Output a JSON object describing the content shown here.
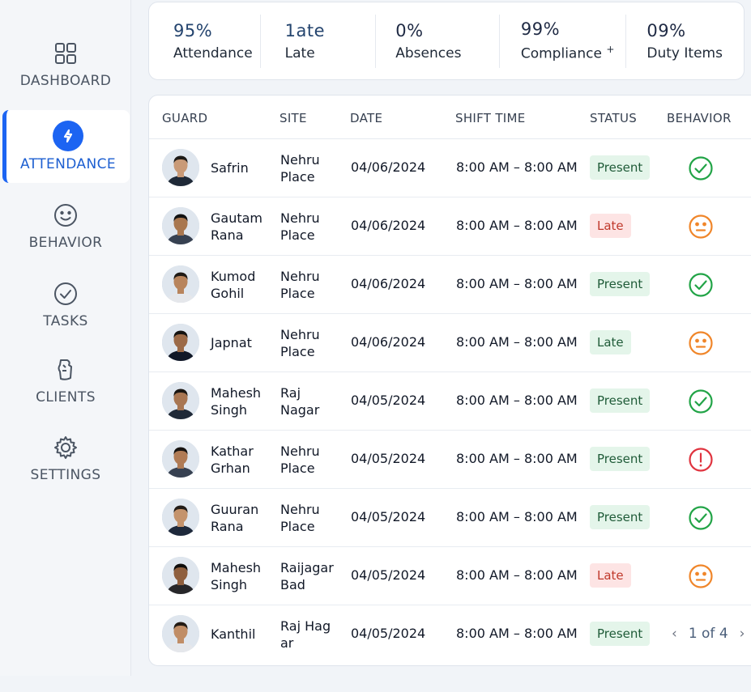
{
  "sidebar": {
    "items": [
      {
        "label": "DASHBOARD",
        "icon": "grid-icon"
      },
      {
        "label": "ATTENDANCE",
        "icon": "attendance-icon"
      },
      {
        "label": "BEHAVIOR",
        "icon": "smiley-icon"
      },
      {
        "label": "TASKS",
        "icon": "check-circle-icon"
      },
      {
        "label": "CLIENTS",
        "icon": "clients-icon"
      },
      {
        "label": "SETTINGS",
        "icon": "gear-icon"
      }
    ],
    "active": "ATTENDANCE"
  },
  "stats": [
    {
      "value": "95%",
      "label": "Attendance"
    },
    {
      "value": "1ate",
      "label": "Late"
    },
    {
      "value": "0%",
      "label": "Absences"
    },
    {
      "value": "99%",
      "label": "Compliance",
      "suffix": "+"
    },
    {
      "value": "09%",
      "label": "Duty Items"
    }
  ],
  "table": {
    "headers": {
      "guard": "GUARD",
      "site": "SITE",
      "date": "DATE",
      "shift": "SHIFT TIME",
      "status": "STATUS",
      "behavior": "BEHAVIOR"
    },
    "rows": [
      {
        "name1": "Safrin",
        "name2": "",
        "site1": "Nehru",
        "site2": "Place",
        "date": "04/06/2024",
        "shift": "8:00 AM – 8:00 AM",
        "status": "Present",
        "behavior": "check-icon"
      },
      {
        "name1": "Gautam",
        "name2": "Rana",
        "site1": "Nehru",
        "site2": "Place",
        "date": "04/06/2024",
        "shift": "8:00 AM – 8:00 AM",
        "status": "Late",
        "behavior": "neutral-face-icon"
      },
      {
        "name1": "Kumod",
        "name2": "Gohil",
        "site1": "Nehru",
        "site2": "Place",
        "date": "04/06/2024",
        "shift": "8:00 AM – 8:00 AM",
        "status": "Present",
        "behavior": "check-icon"
      },
      {
        "name1": "Japnat",
        "name2": "",
        "site1": "Nehru",
        "site2": "Place",
        "date": "04/06/2024",
        "shift": "8:00 AM – 8:00 AM",
        "status": "Late",
        "behavior": "neutral-face-icon"
      },
      {
        "name1": "Mahesh",
        "name2": "Singh",
        "site1": "Raj",
        "site2": "Nagar",
        "date": "04/05/2024",
        "shift": "8:00 AM – 8:00 AM",
        "status": "Present",
        "behavior": "check-icon"
      },
      {
        "name1": "Kathar",
        "name2": "Grhan",
        "site1": "Nehru",
        "site2": "Place",
        "date": "04/05/2024",
        "shift": "8:00 AM – 8:00 AM",
        "status": "Present",
        "behavior": "alert-icon"
      },
      {
        "name1": "Guuran",
        "name2": "Rana",
        "site1": "Nehru",
        "site2": "Place",
        "date": "04/05/2024",
        "shift": "8:00 AM – 8:00 AM",
        "status": "Present",
        "behavior": "check-icon"
      },
      {
        "name1": "Mahesh",
        "name2": "Singh",
        "site1": "Raijagar",
        "site2": "Bad",
        "date": "04/05/2024",
        "shift": "8:00 AM – 8:00 AM",
        "status": "Late",
        "behavior": "neutral-face-icon"
      },
      {
        "name1": "Kanthil",
        "name2": "",
        "site1": "Raj Hag",
        "site2": "ar",
        "date": "04/05/2024",
        "shift": "8:00 AM – 8:00 AM",
        "status": "Present",
        "behavior": ""
      }
    ]
  },
  "pagination": {
    "label": "1 of 4",
    "prev": "‹",
    "next": "›"
  },
  "colors": {
    "accent": "#1c64f2",
    "present_bg": "#e4f5ea",
    "late_bg": "#fde4e4",
    "good": "#22a447",
    "neutral": "#f0862a",
    "alert": "#e0343f"
  }
}
